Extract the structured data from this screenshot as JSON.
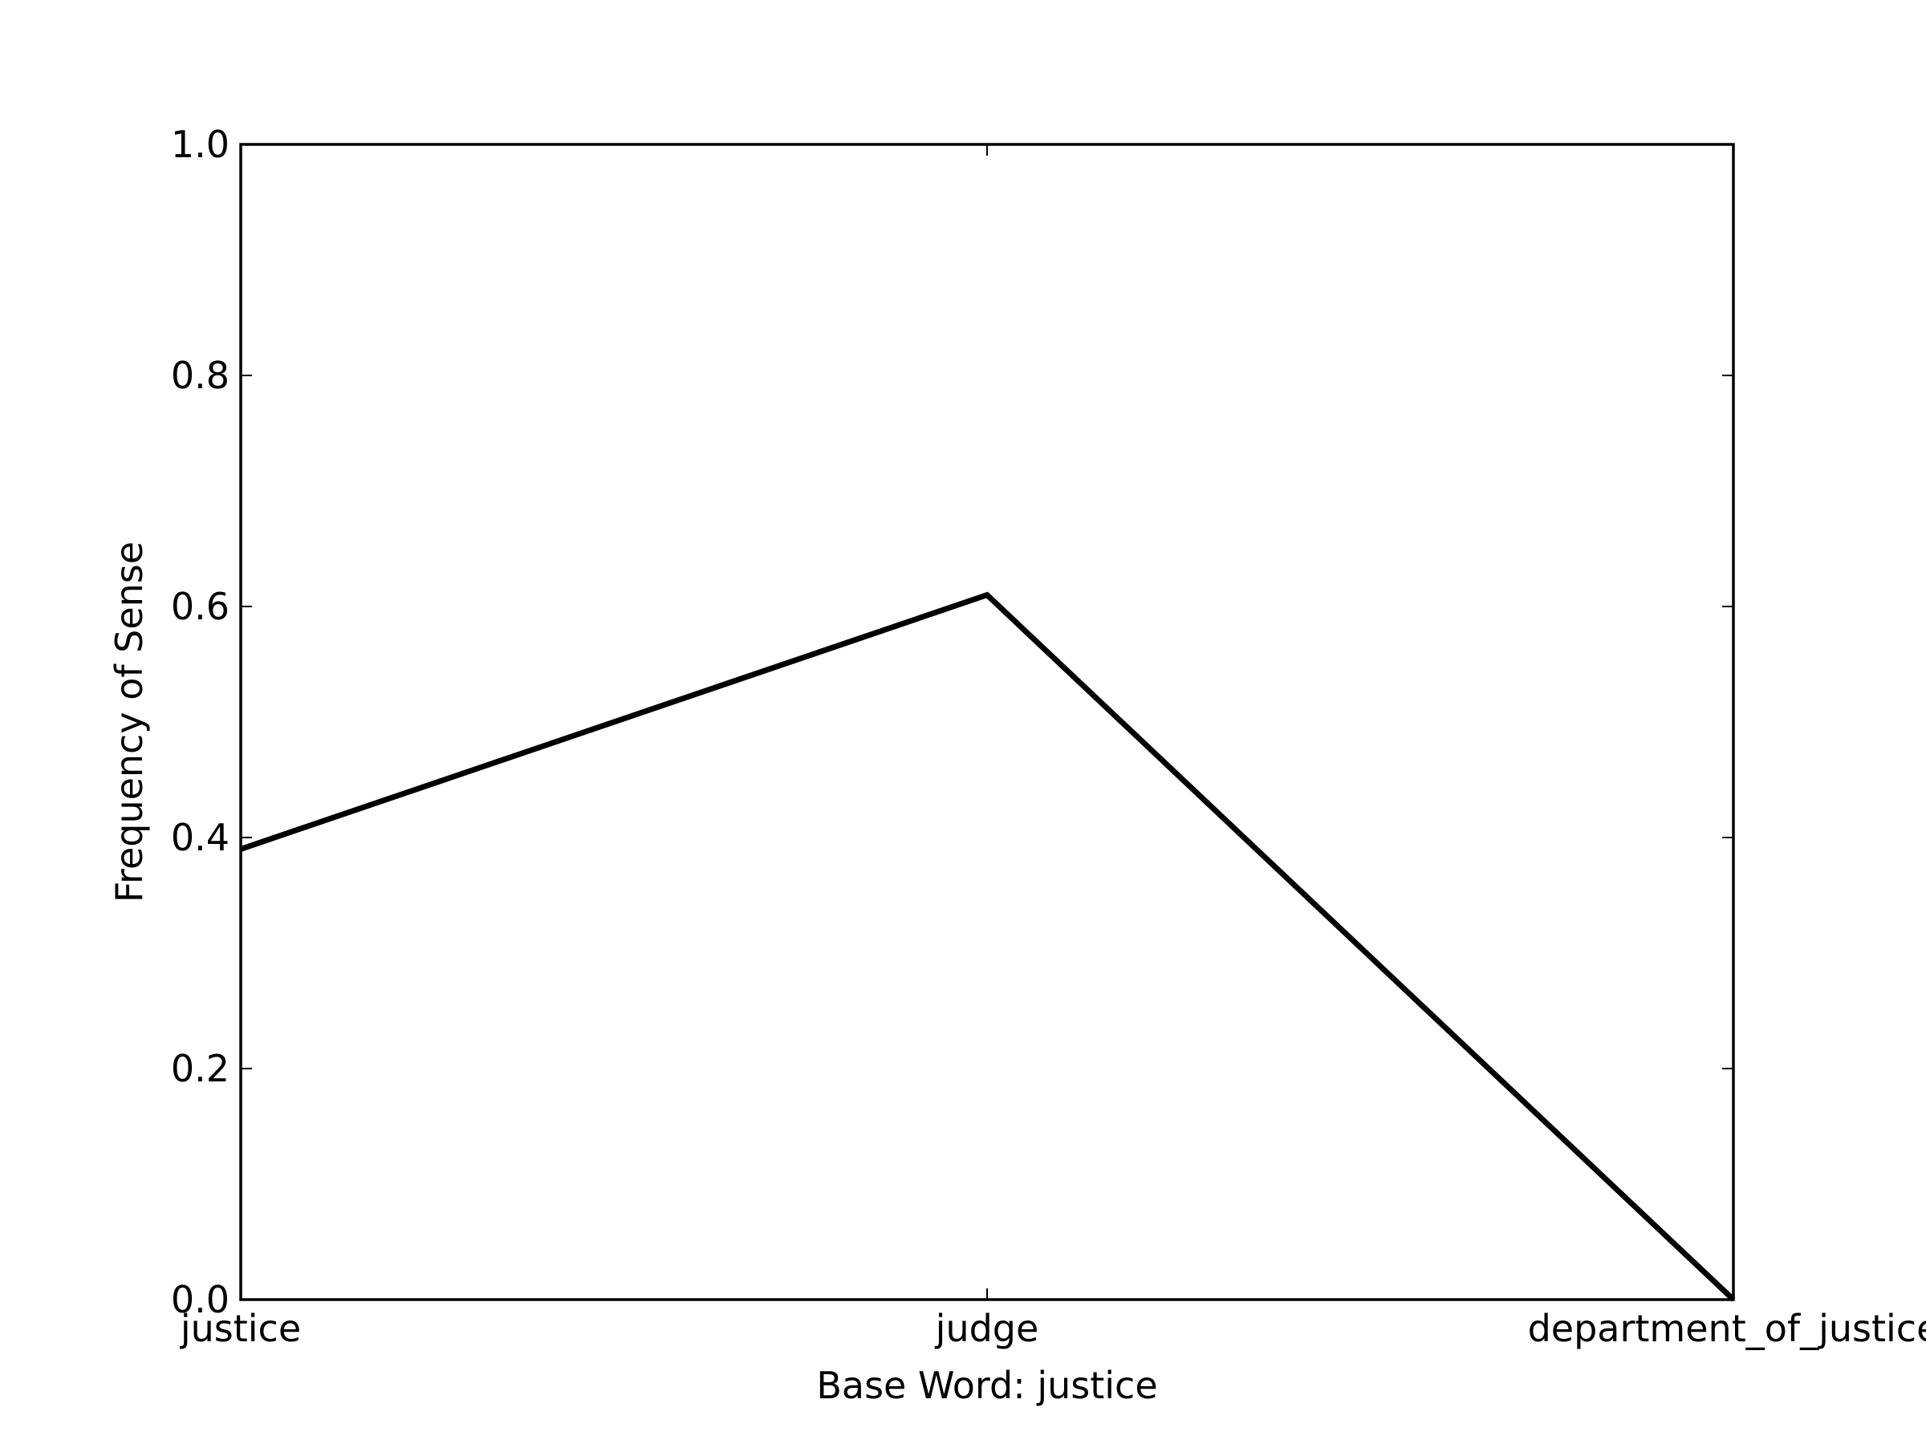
{
  "chart_data": {
    "type": "line",
    "title": "",
    "xlabel": "Base Word: justice",
    "ylabel": "Frequency of Sense",
    "categories": [
      "justice",
      "judge",
      "department_of_justice"
    ],
    "series": [
      {
        "values": [
          0.39,
          0.61,
          0.0
        ]
      }
    ],
    "ylim": [
      0,
      1
    ],
    "yticks": [
      0.0,
      0.2,
      0.4,
      0.6,
      0.8,
      1.0
    ],
    "ytick_labels": [
      "0.0",
      "0.2",
      "0.4",
      "0.6",
      "0.8",
      "1.0"
    ],
    "grid": false,
    "legend": "none",
    "line_color": "#000000"
  }
}
